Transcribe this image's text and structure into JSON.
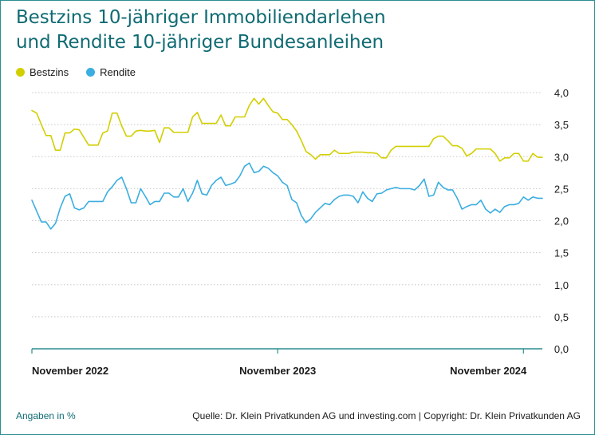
{
  "title": {
    "line1": "Bestzins 10-jähriger Immobiliendarlehen",
    "line2": "und Rendite 10-jähriger Bundesanleihen"
  },
  "footer": {
    "note": "Angaben in %",
    "source": "Quelle: Dr. Klein Privatkunden AG und investing.com | Copyright: Dr. Klein Privatkunden AG"
  },
  "chart_data": {
    "type": "line",
    "title": "Bestzins 10-jähriger Immobiliendarlehen und Rendite 10-jähriger Bundesanleihen",
    "xlabel": "",
    "ylabel": "",
    "ylim": [
      0,
      4
    ],
    "y_ticks": [
      "0,0",
      "0,5",
      "1,0",
      "1,5",
      "2,0",
      "2,5",
      "3,0",
      "3,5",
      "4,0"
    ],
    "x_tick_labels": [
      "November 2022",
      "November 2023",
      "November 2024"
    ],
    "x_tick_index": [
      0,
      52,
      104
    ],
    "grid": true,
    "legend": "top-left",
    "colors": {
      "Bestzins": "#d2cf00",
      "Rendite": "#3aaee0",
      "axis": "#2b8e8f",
      "grid": "#c8c8c8"
    },
    "series": [
      {
        "name": "Bestzins",
        "color": "#d2cf00",
        "values": [
          3.72,
          3.68,
          3.5,
          3.33,
          3.33,
          3.1,
          3.1,
          3.37,
          3.37,
          3.43,
          3.42,
          3.3,
          3.18,
          3.18,
          3.18,
          3.37,
          3.4,
          3.68,
          3.68,
          3.48,
          3.32,
          3.32,
          3.4,
          3.41,
          3.4,
          3.4,
          3.41,
          3.22,
          3.45,
          3.45,
          3.38,
          3.38,
          3.38,
          3.38,
          3.62,
          3.69,
          3.52,
          3.52,
          3.52,
          3.52,
          3.65,
          3.48,
          3.48,
          3.62,
          3.62,
          3.62,
          3.8,
          3.91,
          3.82,
          3.91,
          3.8,
          3.7,
          3.68,
          3.58,
          3.58,
          3.5,
          3.4,
          3.25,
          3.08,
          3.03,
          2.96,
          3.03,
          3.03,
          3.03,
          3.1,
          3.05,
          3.05,
          3.05,
          3.07,
          3.07,
          3.07,
          3.06,
          3.06,
          3.05,
          2.98,
          2.98,
          3.1,
          3.16,
          3.16,
          3.16,
          3.16,
          3.16,
          3.16,
          3.16,
          3.16,
          3.28,
          3.32,
          3.32,
          3.25,
          3.17,
          3.17,
          3.13,
          3.01,
          3.05,
          3.12,
          3.12,
          3.12,
          3.12,
          3.05,
          2.93,
          2.98,
          2.98,
          3.05,
          3.05,
          2.93,
          2.93,
          3.05,
          2.99,
          2.99
        ]
      },
      {
        "name": "Rendite",
        "color": "#3aaee0",
        "values": [
          2.32,
          2.15,
          1.98,
          1.98,
          1.87,
          1.96,
          2.2,
          2.38,
          2.42,
          2.2,
          2.17,
          2.2,
          2.3,
          2.3,
          2.3,
          2.3,
          2.45,
          2.53,
          2.63,
          2.68,
          2.5,
          2.28,
          2.28,
          2.5,
          2.38,
          2.25,
          2.3,
          2.3,
          2.43,
          2.43,
          2.37,
          2.37,
          2.5,
          2.3,
          2.43,
          2.63,
          2.42,
          2.4,
          2.55,
          2.63,
          2.68,
          2.55,
          2.57,
          2.6,
          2.7,
          2.85,
          2.9,
          2.75,
          2.77,
          2.85,
          2.82,
          2.75,
          2.7,
          2.6,
          2.55,
          2.33,
          2.28,
          2.08,
          1.97,
          2.03,
          2.13,
          2.2,
          2.27,
          2.25,
          2.33,
          2.38,
          2.4,
          2.4,
          2.38,
          2.28,
          2.45,
          2.35,
          2.3,
          2.42,
          2.43,
          2.48,
          2.5,
          2.52,
          2.5,
          2.5,
          2.5,
          2.48,
          2.55,
          2.65,
          2.38,
          2.4,
          2.6,
          2.52,
          2.48,
          2.48,
          2.35,
          2.18,
          2.22,
          2.25,
          2.25,
          2.32,
          2.18,
          2.12,
          2.18,
          2.13,
          2.22,
          2.25,
          2.25,
          2.27,
          2.37,
          2.32,
          2.37,
          2.35,
          2.35
        ]
      }
    ]
  }
}
